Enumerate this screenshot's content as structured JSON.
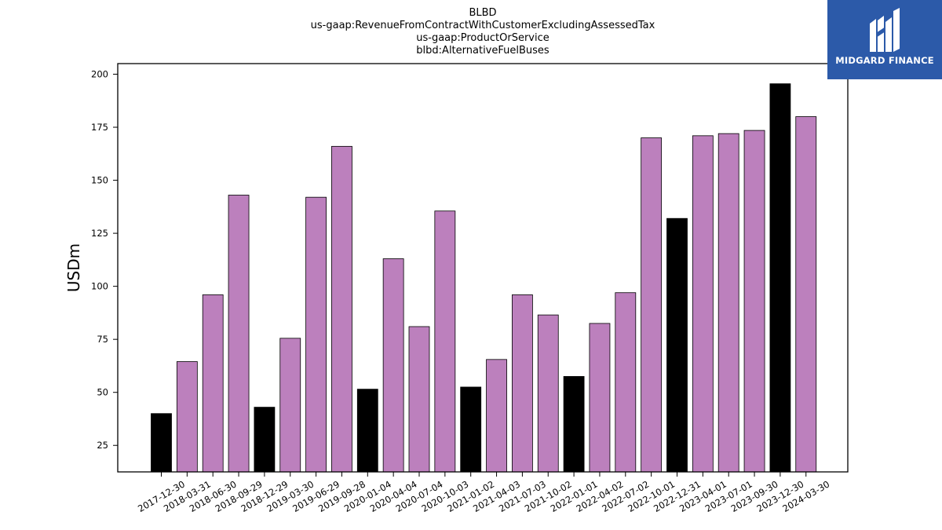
{
  "chart_data": {
    "type": "bar",
    "title_lines": [
      "BLBD",
      "us-gaap:RevenueFromContractWithCustomerExcludingAssessedTax",
      "us-gaap:ProductOrService",
      "blbd:AlternativeFuelBuses"
    ],
    "xlabel": "",
    "ylabel": "USDm",
    "ylim": [
      12.5,
      205
    ],
    "yticks": [
      25,
      50,
      75,
      100,
      125,
      150,
      175,
      200
    ],
    "grid": false,
    "categories": [
      "2017-12-30",
      "2018-03-31",
      "2018-06-30",
      "2018-09-29",
      "2018-12-29",
      "2019-03-30",
      "2019-06-29",
      "2019-09-28",
      "2020-01-04",
      "2020-04-04",
      "2020-07-04",
      "2020-10-03",
      "2021-01-02",
      "2021-04-03",
      "2021-07-03",
      "2021-10-02",
      "2022-01-01",
      "2022-04-02",
      "2022-07-02",
      "2022-10-01",
      "2022-12-31",
      "2023-04-01",
      "2023-07-01",
      "2023-09-30",
      "2023-12-30",
      "2024-03-30"
    ],
    "values": [
      40,
      64.5,
      96,
      143,
      43,
      75.5,
      142,
      166,
      51.5,
      113,
      81,
      135.5,
      52.5,
      65.5,
      96,
      86.5,
      57.5,
      82.5,
      97,
      170,
      132,
      171,
      172,
      173.5,
      195.5,
      180
    ],
    "highlight": [
      true,
      false,
      false,
      false,
      true,
      false,
      false,
      false,
      true,
      false,
      false,
      false,
      true,
      false,
      false,
      false,
      true,
      false,
      false,
      false,
      true,
      false,
      false,
      false,
      true,
      false
    ],
    "colors": {
      "bar": "#bc80bd",
      "highlight": "#000000",
      "edge": "#000000"
    }
  },
  "logo": {
    "text": "MIDGARD FINANCE",
    "background": "#2c5aa9"
  }
}
